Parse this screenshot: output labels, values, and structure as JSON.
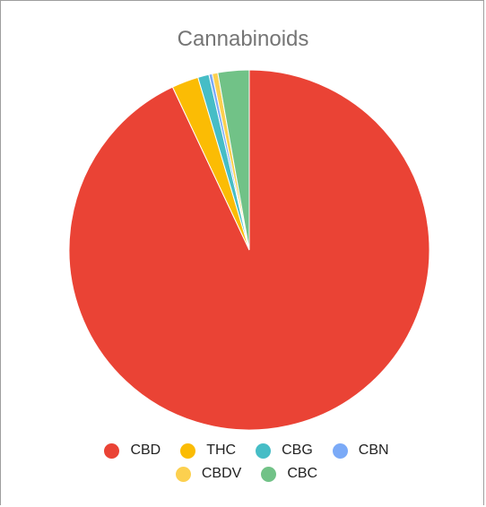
{
  "chart_data": {
    "type": "pie",
    "title": "Cannabinoids",
    "legend_position": "bottom",
    "start_angle_deg": 0,
    "direction": "clockwise",
    "slices": [
      {
        "name": "CBD",
        "value": 93.0,
        "color": "#ea4335"
      },
      {
        "name": "THC",
        "value": 2.4,
        "color": "#fbbc04"
      },
      {
        "name": "CBG",
        "value": 1.0,
        "color": "#46bdc6"
      },
      {
        "name": "CBN",
        "value": 0.3,
        "color": "#7baaf7"
      },
      {
        "name": "CBDV",
        "value": 0.5,
        "color": "#fcd04f"
      },
      {
        "name": "CBC",
        "value": 2.8,
        "color": "#71c287"
      }
    ]
  }
}
